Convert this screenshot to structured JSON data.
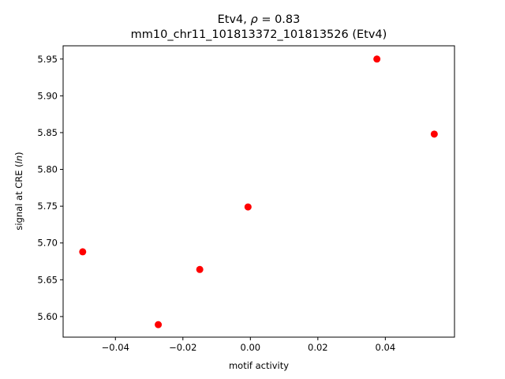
{
  "chart_data": {
    "type": "scatter",
    "title_prefix": "Etv4, ",
    "title_rho": "ρ",
    "title_suffix": " = 0.83",
    "subtitle": "mm10_chr11_101813372_101813526 (Etv4)",
    "xlabel": "motif activity",
    "ylabel_prefix": "signal at CRE (",
    "ylabel_italic": "ln",
    "ylabel_suffix": ")",
    "xlim": [
      -0.0555,
      0.0605
    ],
    "ylim": [
      5.572,
      5.968
    ],
    "xticks": [
      -0.04,
      -0.02,
      0.0,
      0.02,
      0.04
    ],
    "xtick_labels": [
      "−0.04",
      "−0.02",
      "0.00",
      "0.02",
      "0.04"
    ],
    "yticks": [
      5.6,
      5.65,
      5.7,
      5.75,
      5.8,
      5.85,
      5.9,
      5.95
    ],
    "ytick_labels": [
      "5.60",
      "5.65",
      "5.70",
      "5.75",
      "5.80",
      "5.85",
      "5.90",
      "5.95"
    ],
    "marker_color": "#ff0000",
    "grid": false,
    "points": [
      {
        "x": -0.0497,
        "y": 5.688
      },
      {
        "x": -0.0273,
        "y": 5.589
      },
      {
        "x": -0.015,
        "y": 5.664
      },
      {
        "x": -0.0007,
        "y": 5.749
      },
      {
        "x": 0.0375,
        "y": 5.95
      },
      {
        "x": 0.0545,
        "y": 5.848
      }
    ]
  }
}
